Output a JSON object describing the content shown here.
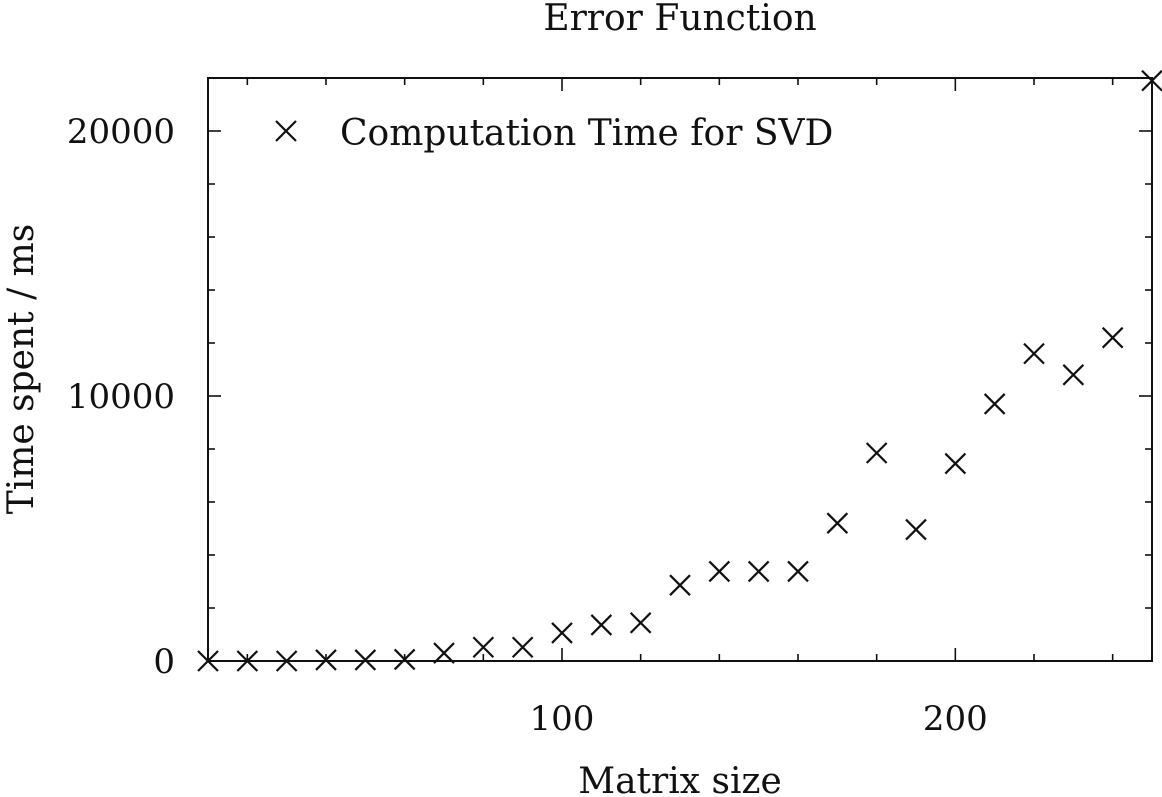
{
  "chart_data": {
    "type": "scatter",
    "title": "Error Function",
    "xlabel": "Matrix size",
    "ylabel": "Time spent / ms",
    "xlim": [
      10,
      250
    ],
    "ylim": [
      0,
      22000
    ],
    "x_major_ticks": [
      100,
      200
    ],
    "x_minor_step": 20,
    "y_major_ticks": [
      0,
      10000,
      20000
    ],
    "y_minor_step": 2000,
    "grid": false,
    "legend_position": "top-left",
    "series": [
      {
        "name": "Computation Time for SVD",
        "marker": "x",
        "x": [
          10,
          20,
          30,
          40,
          50,
          60,
          70,
          80,
          90,
          100,
          110,
          120,
          130,
          140,
          150,
          160,
          170,
          180,
          190,
          200,
          210,
          220,
          230,
          240,
          250
        ],
        "y": [
          0,
          0,
          0,
          40,
          40,
          60,
          300,
          520,
          520,
          1060,
          1360,
          1440,
          2860,
          3380,
          3380,
          3380,
          5200,
          7850,
          4960,
          7450,
          9700,
          11600,
          10800,
          12200,
          21900
        ]
      }
    ]
  }
}
